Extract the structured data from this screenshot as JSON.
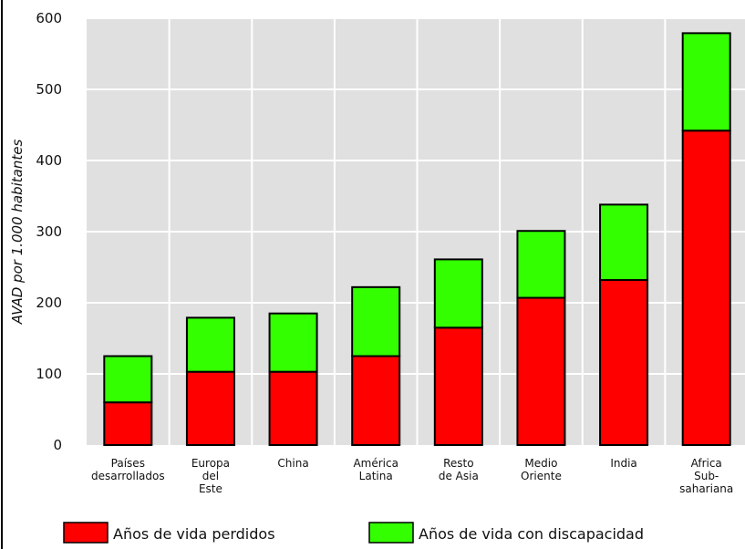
{
  "chart_data": {
    "type": "bar",
    "stacked": true,
    "categories": [
      [
        "Países",
        "desarrollados"
      ],
      [
        "Europa",
        "del",
        "Este"
      ],
      [
        "China"
      ],
      [
        "América",
        "Latina"
      ],
      [
        "Resto",
        "de Asia"
      ],
      [
        "Medio",
        "Oriente"
      ],
      [
        "India"
      ],
      [
        "Africa",
        "Sub-",
        "sahariana"
      ]
    ],
    "series": [
      {
        "name": "Años de vida perdidos",
        "color": "#ff0000",
        "values": [
          60,
          103,
          103,
          125,
          165,
          207,
          232,
          442
        ]
      },
      {
        "name": "Años de vida con discapacidad",
        "color": "#33ff00",
        "values": [
          65,
          76,
          82,
          97,
          96,
          94,
          106,
          137
        ]
      }
    ],
    "ylabel": "AVAD por 1.000 habitantes",
    "yticks": [
      0,
      100,
      200,
      300,
      400,
      500,
      600
    ],
    "ylim": [
      0,
      600
    ],
    "grid": true,
    "background": "#e0e0e0",
    "legend_position": "bottom"
  }
}
